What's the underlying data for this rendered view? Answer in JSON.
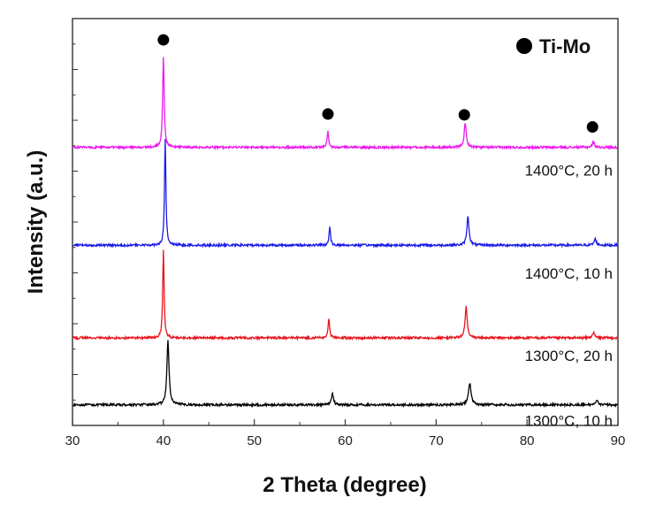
{
  "chart_data": {
    "type": "line",
    "xlabel": "2 Theta (degree)",
    "ylabel": "Intensity (a.u.)",
    "xlim": [
      30,
      90
    ],
    "x_ticks": [
      30,
      40,
      50,
      60,
      70,
      80,
      90
    ],
    "y_ticks_labeled": false,
    "legend": {
      "label": "Ti-Mo",
      "marker": "filled-circle",
      "placement": "top-right"
    },
    "peak_markers_x": [
      40.0,
      58.1,
      73.1,
      87.2
    ],
    "series": [
      {
        "name": "1300°C, 10 h",
        "color": "#000000",
        "baseline": 0.0,
        "peaks": [
          {
            "x": 40.5,
            "height": 0.62,
            "width": 0.28
          },
          {
            "x": 58.6,
            "height": 0.11,
            "width": 0.28
          },
          {
            "x": 73.7,
            "height": 0.21,
            "width": 0.35
          },
          {
            "x": 87.7,
            "height": 0.05,
            "width": 0.3
          }
        ]
      },
      {
        "name": "1300°C, 20 h",
        "color": "#e8141c",
        "baseline": 0.65,
        "peaks": [
          {
            "x": 40.0,
            "height": 0.85,
            "width": 0.18
          },
          {
            "x": 58.2,
            "height": 0.19,
            "width": 0.2
          },
          {
            "x": 73.3,
            "height": 0.3,
            "width": 0.28
          },
          {
            "x": 87.3,
            "height": 0.05,
            "width": 0.3
          }
        ]
      },
      {
        "name": "1400°C, 10 h",
        "color": "#1a1ae8",
        "baseline": 1.55,
        "peaks": [
          {
            "x": 40.2,
            "height": 1.03,
            "width": 0.18
          },
          {
            "x": 58.3,
            "height": 0.17,
            "width": 0.2
          },
          {
            "x": 73.5,
            "height": 0.28,
            "width": 0.28
          },
          {
            "x": 87.5,
            "height": 0.06,
            "width": 0.3
          }
        ]
      },
      {
        "name": "1400°C, 20 h",
        "color": "#ee18ee",
        "baseline": 2.5,
        "peaks": [
          {
            "x": 40.0,
            "height": 0.88,
            "width": 0.2
          },
          {
            "x": 58.1,
            "height": 0.16,
            "width": 0.2
          },
          {
            "x": 73.2,
            "height": 0.23,
            "width": 0.28
          },
          {
            "x": 87.3,
            "height": 0.05,
            "width": 0.3
          }
        ]
      }
    ]
  }
}
